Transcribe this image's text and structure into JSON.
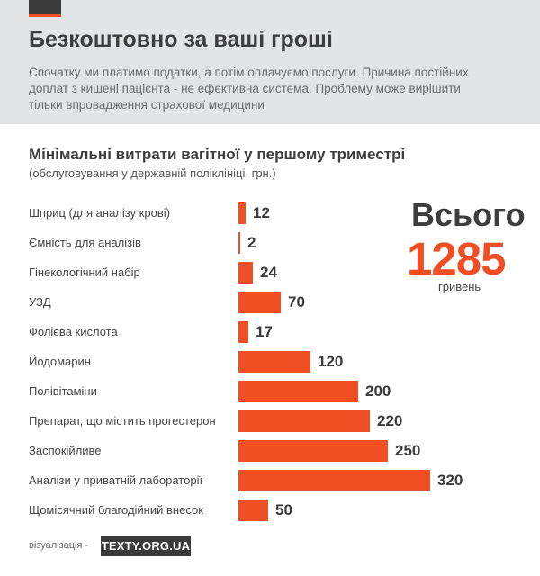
{
  "header": {
    "title": "Безкоштовно за ваші гроші",
    "intro": "Спочатку ми платимо податки, а потім оплачуємо послуги. Причина постійних доплат з кишені пацієнта - не ефективна система. Проблему може вирішити тільки впровадження страхової медицини"
  },
  "total": {
    "word": "Всього",
    "value": "1285",
    "unit": "гривень"
  },
  "credit": {
    "label": "візуалізація -",
    "logo_text": "TEXTY.ORG.UA"
  },
  "colors": {
    "accent": "#f04e23",
    "dark": "#3a3a3a",
    "header_bg": "#e3e4e6"
  },
  "chart_data": {
    "type": "bar",
    "orientation": "horizontal",
    "title": "Мінімальні витрати вагітної у першому триместрі",
    "subtitle": "(обслуговування у державній поліклініці, грн.)",
    "categories": [
      "Шприц (для аналізу крові)",
      "Ємність для аналізів",
      "Гінекологічний набір",
      "УЗД",
      "Фолієва кислота",
      "Йодомарин",
      "Полівітаміни",
      "Препарат, що містить прогестерон",
      "Заспокійливе",
      "Аналізи у приватній лабораторії",
      "Щомісячний благодійний внесок"
    ],
    "values": [
      12,
      2,
      24,
      70,
      17,
      120,
      200,
      220,
      250,
      320,
      50
    ],
    "xlim": [
      0,
      320
    ],
    "grid": false,
    "legend": "none"
  }
}
